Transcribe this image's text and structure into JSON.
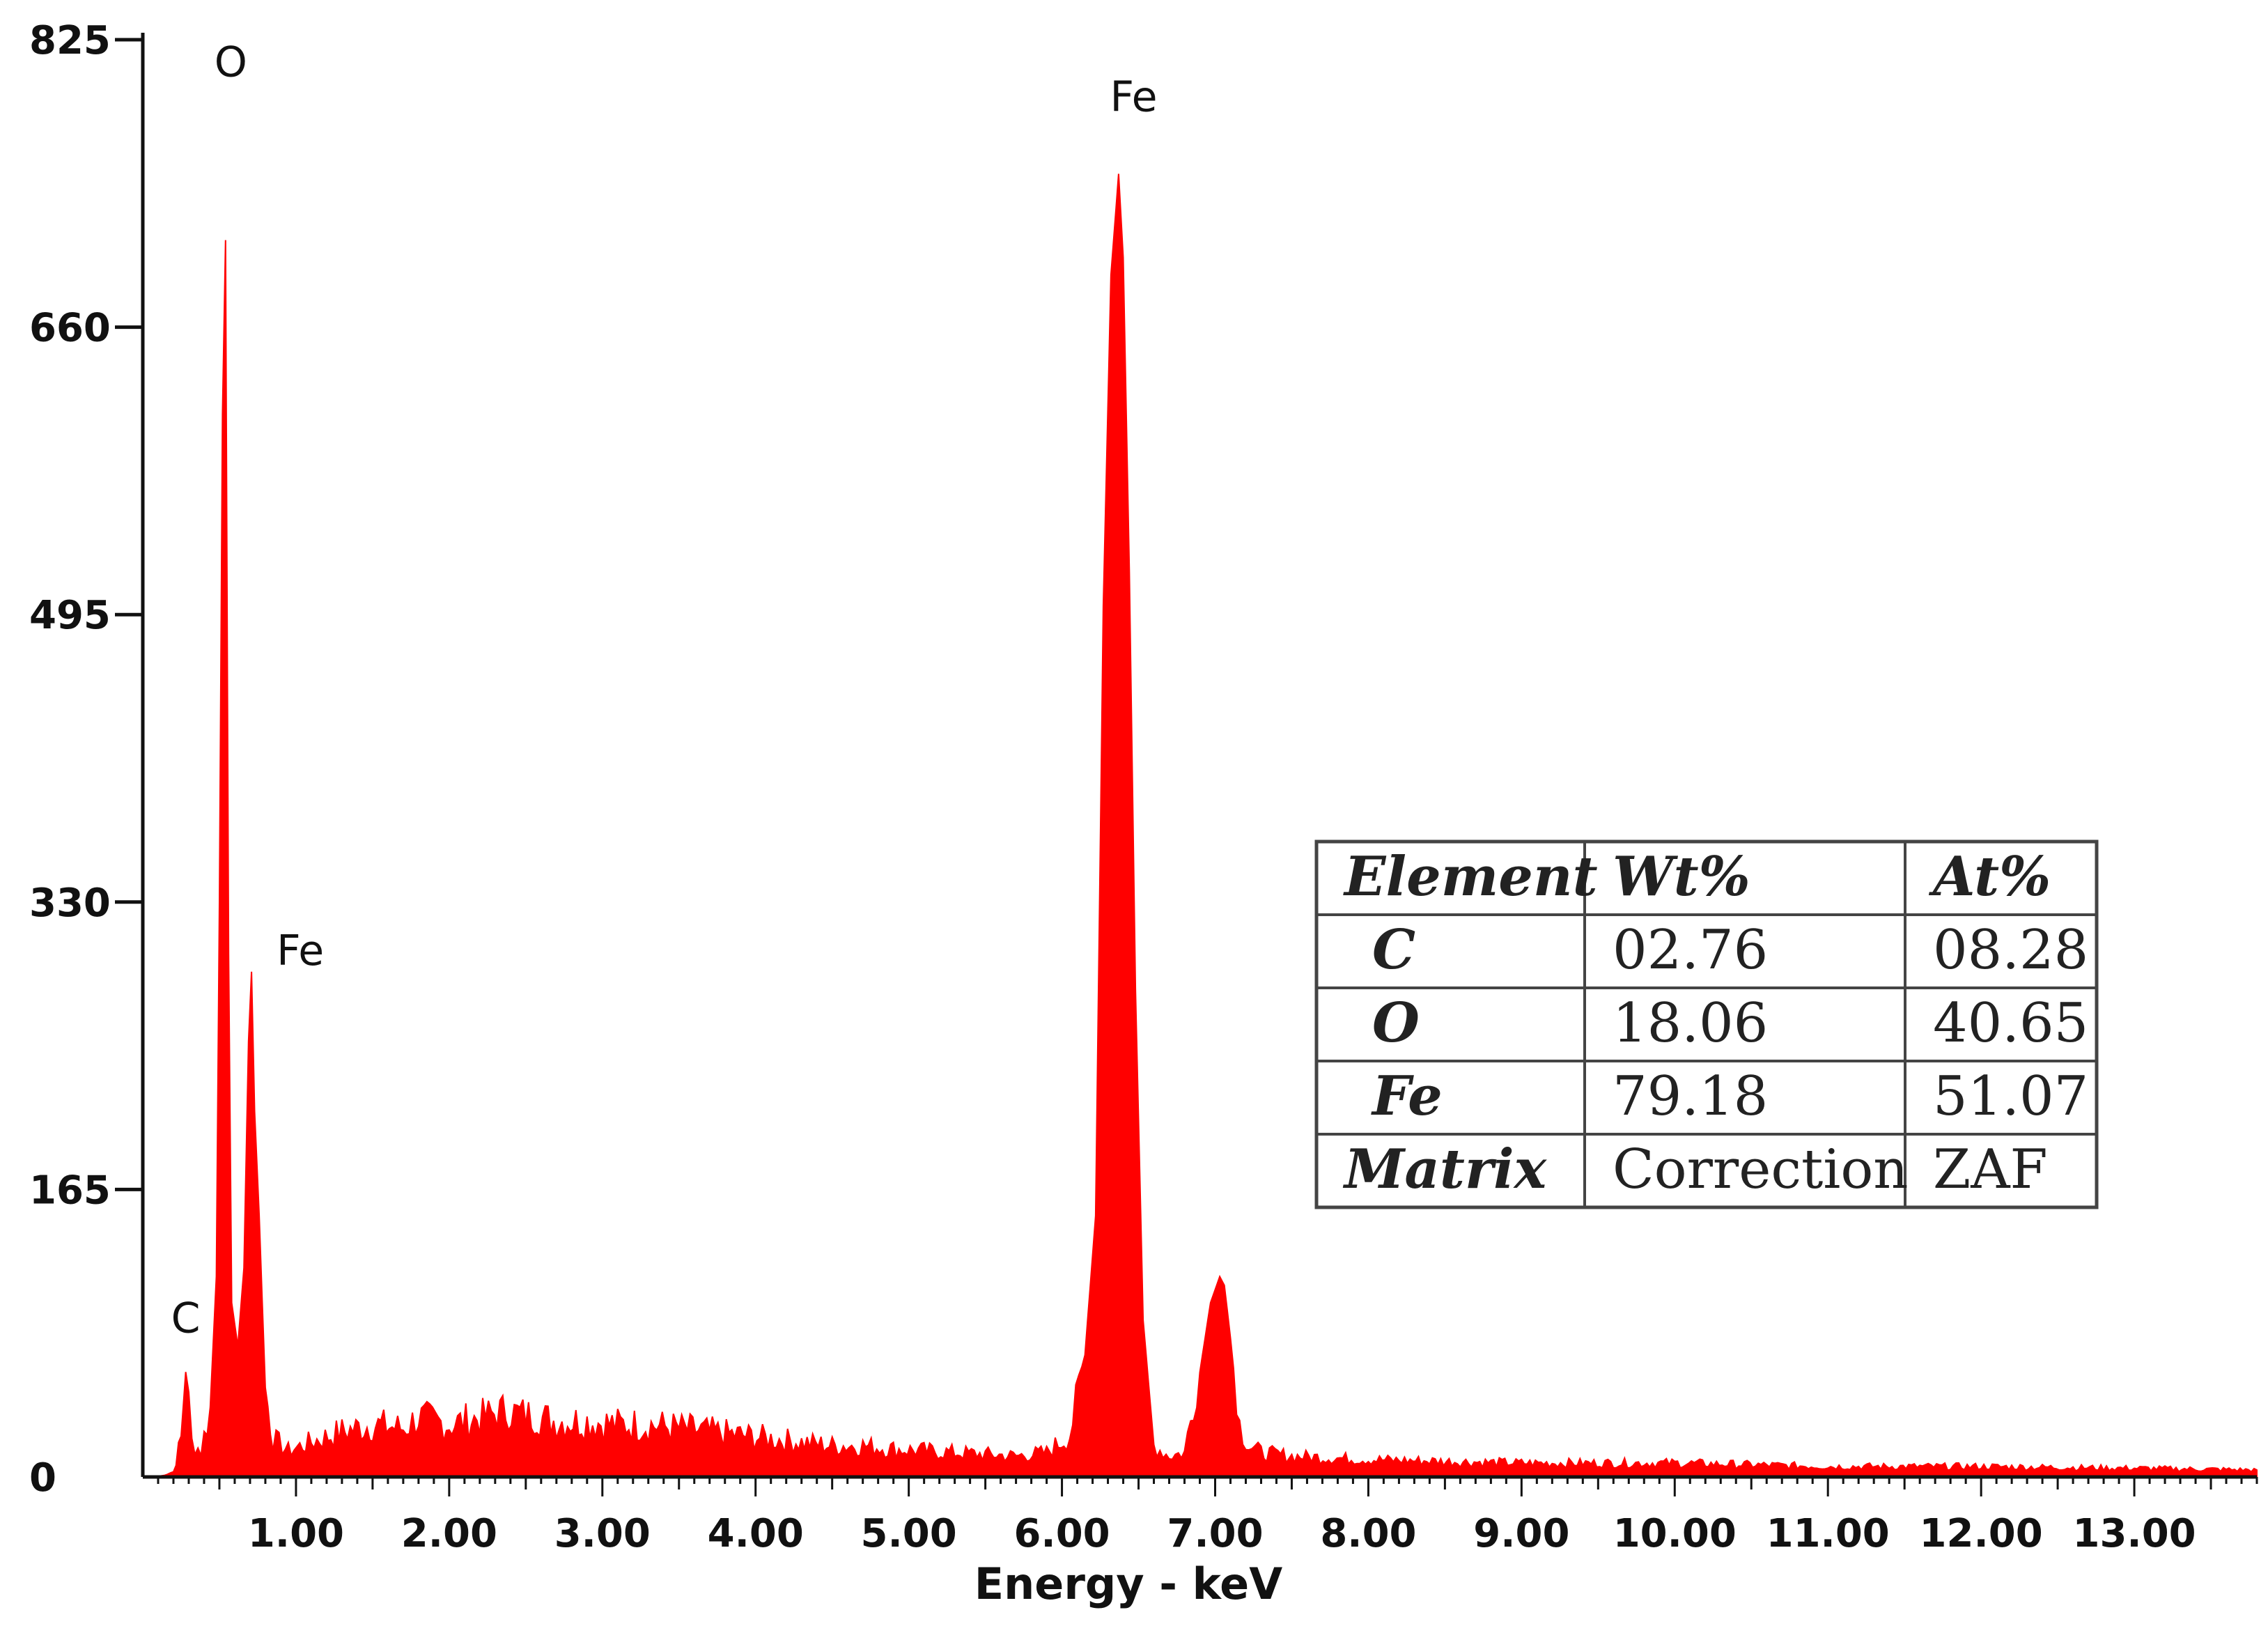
{
  "chart_data": {
    "type": "line",
    "xlabel": "Energy - keV",
    "ylabel": "",
    "xlim": [
      0.0,
      13.8
    ],
    "ylim": [
      0,
      825
    ],
    "x_ticks": [
      "1.00",
      "2.00",
      "3.00",
      "4.00",
      "5.00",
      "6.00",
      "7.00",
      "8.00",
      "9.00",
      "10.00",
      "11.00",
      "12.00",
      "13.00"
    ],
    "y_ticks": [
      "0",
      "165",
      "330",
      "495",
      "660",
      "825"
    ],
    "series_color": "#ff0000",
    "peaks": [
      {
        "x": 0.28,
        "y": 65,
        "label": "C"
      },
      {
        "x": 0.52,
        "y": 710,
        "label": "O"
      },
      {
        "x": 0.71,
        "y": 290,
        "label": "Fe"
      },
      {
        "x": 6.4,
        "y": 748,
        "label": "Fe"
      },
      {
        "x": 7.06,
        "y": 115,
        "label": ""
      }
    ],
    "spectrum": {
      "x": [
        0.1,
        0.2,
        0.25,
        0.28,
        0.32,
        0.38,
        0.44,
        0.48,
        0.5,
        0.52,
        0.54,
        0.56,
        0.58,
        0.62,
        0.66,
        0.69,
        0.71,
        0.73,
        0.76,
        0.8,
        0.85,
        0.95,
        1.1,
        1.3,
        1.5,
        1.7,
        1.8,
        2.0,
        2.2,
        2.35,
        2.5,
        2.7,
        2.9,
        3.1,
        3.3,
        3.5,
        3.7,
        3.9,
        4.1,
        4.3,
        4.5,
        4.7,
        4.9,
        5.1,
        5.3,
        5.5,
        5.7,
        5.9,
        6.05,
        6.15,
        6.22,
        6.27,
        6.32,
        6.37,
        6.4,
        6.44,
        6.48,
        6.53,
        6.6,
        6.7,
        6.8,
        6.9,
        6.97,
        7.03,
        7.06,
        7.1,
        7.16,
        7.22,
        7.3,
        7.5,
        8.0,
        9.0,
        10.0,
        11.0,
        12.0,
        13.0,
        13.8
      ],
      "y": [
        0,
        3,
        22,
        65,
        20,
        15,
        40,
        115,
        330,
        610,
        710,
        300,
        100,
        75,
        120,
        250,
        290,
        210,
        150,
        50,
        22,
        15,
        20,
        26,
        30,
        28,
        34,
        30,
        34,
        38,
        36,
        32,
        32,
        30,
        30,
        28,
        26,
        24,
        22,
        20,
        18,
        18,
        16,
        15,
        14,
        13,
        12,
        14,
        24,
        70,
        150,
        500,
        690,
        748,
        700,
        520,
        280,
        90,
        18,
        12,
        14,
        60,
        100,
        115,
        110,
        80,
        30,
        18,
        14,
        12,
        10,
        8,
        8,
        6,
        6,
        5,
        4
      ]
    },
    "table": {
      "headers": [
        "Element",
        "Wt%",
        "At%"
      ],
      "rows": [
        [
          "C",
          "02.76",
          "08.28"
        ],
        [
          "O",
          "18.06",
          "40.65"
        ],
        [
          "Fe",
          "79.18",
          "51.07"
        ],
        [
          "Matrix",
          "Correction",
          "ZAF"
        ]
      ]
    }
  }
}
